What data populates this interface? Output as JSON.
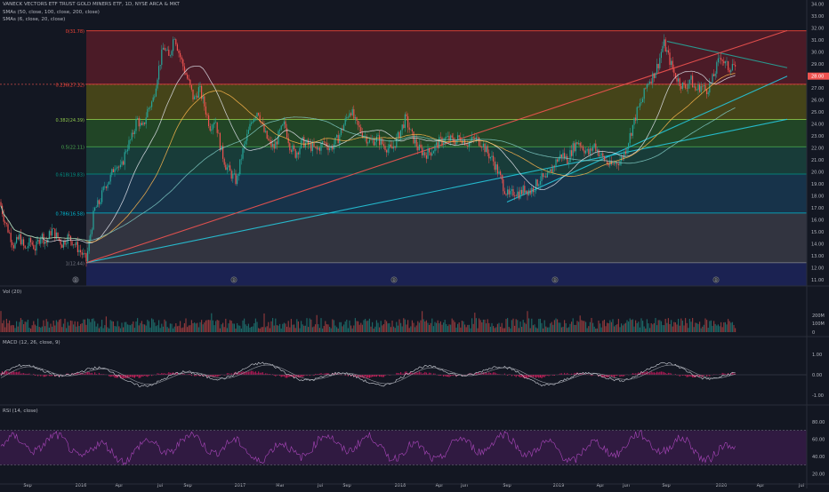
{
  "header": {
    "title": "VANECK VECTORS ETF TRUST GOLD MINERS ETF, 1D, NYSE ARCA & MKT",
    "sma1": "SMAs (50, close, 100, close, 200, close)",
    "sma2": "SMAs (6, close, 20, close)"
  },
  "panes": {
    "volume": "Vol (20)",
    "macd": "MACD (12, 26, close, 9)",
    "rsi": "RSI (14, close)"
  },
  "colors": {
    "background": "#131722",
    "up": "#26a69a",
    "down": "#ef5350",
    "trendline": "#2dd4a8",
    "rsi": "#9c27b0",
    "macd_hist": "#e91e63",
    "price_tag": "#ef5350"
  },
  "chart_data": {
    "type": "line",
    "price_axis": {
      "ticks": [
        "34.00",
        "33.00",
        "32.00",
        "31.00",
        "30.00",
        "29.00",
        "28.00",
        "27.00",
        "26.00",
        "25.00",
        "24.00",
        "23.00",
        "22.00",
        "21.00",
        "20.00",
        "19.00",
        "18.00",
        "17.00",
        "16.00",
        "15.00",
        "14.00",
        "13.00",
        "12.00",
        "11.00"
      ],
      "min": 10.5,
      "max": 34.2,
      "last_price": "28.00"
    },
    "time_axis": [
      "Sep",
      "2016",
      "Apr",
      "Jul",
      "Sep",
      "2017",
      "Mar",
      "Jul",
      "Sep",
      "2018",
      "Apr",
      "Jun",
      "Sep",
      "2019",
      "Apr",
      "Jun",
      "Sep",
      "2020",
      "Apr",
      "Jul"
    ],
    "fib_levels": [
      {
        "label": "0(31.78)",
        "price": 31.78,
        "color": "#f44336"
      },
      {
        "label": "0.236(27.32)",
        "price": 27.32,
        "color": "#f44336"
      },
      {
        "label": "0.382(24.39)",
        "price": 24.39,
        "color": "#8bc34a"
      },
      {
        "label": "0.5(22.11)",
        "price": 22.11,
        "color": "#4caf50"
      },
      {
        "label": "0.618(19.83)",
        "price": 19.83,
        "color": "#009688"
      },
      {
        "label": "0.786(16.58)",
        "price": 16.58,
        "color": "#00bcd4"
      },
      {
        "label": "1(12.44)",
        "price": 12.44,
        "color": "#787b86"
      }
    ],
    "price_series": [
      {
        "t": 0,
        "v": 17.5
      },
      {
        "t": 5,
        "v": 16.0
      },
      {
        "t": 10,
        "v": 15.0
      },
      {
        "t": 16,
        "v": 13.8
      },
      {
        "t": 22,
        "v": 14.6
      },
      {
        "t": 28,
        "v": 13.5
      },
      {
        "t": 34,
        "v": 14.2
      },
      {
        "t": 40,
        "v": 13.6
      },
      {
        "t": 46,
        "v": 14.8
      },
      {
        "t": 52,
        "v": 14.1
      },
      {
        "t": 58,
        "v": 15.2
      },
      {
        "t": 64,
        "v": 14.6
      },
      {
        "t": 70,
        "v": 14.0
      },
      {
        "t": 76,
        "v": 14.6
      },
      {
        "t": 82,
        "v": 14.2
      },
      {
        "t": 88,
        "v": 13.6
      },
      {
        "t": 92,
        "v": 13.2
      },
      {
        "t": 97,
        "v": 12.6
      },
      {
        "t": 101,
        "v": 14.5
      },
      {
        "t": 106,
        "v": 16.8
      },
      {
        "t": 112,
        "v": 17.5
      },
      {
        "t": 118,
        "v": 18.9
      },
      {
        "t": 124,
        "v": 19.5
      },
      {
        "t": 130,
        "v": 20.8
      },
      {
        "t": 136,
        "v": 20.2
      },
      {
        "t": 142,
        "v": 22.0
      },
      {
        "t": 148,
        "v": 22.8
      },
      {
        "t": 154,
        "v": 24.5
      },
      {
        "t": 160,
        "v": 23.5
      },
      {
        "t": 166,
        "v": 25.2
      },
      {
        "t": 172,
        "v": 26.0
      },
      {
        "t": 178,
        "v": 28.5
      },
      {
        "t": 184,
        "v": 30.5
      },
      {
        "t": 190,
        "v": 29.5
      },
      {
        "t": 196,
        "v": 31.5
      },
      {
        "t": 201,
        "v": 30.0
      },
      {
        "t": 206,
        "v": 28.8
      },
      {
        "t": 212,
        "v": 27.5
      },
      {
        "t": 218,
        "v": 26.0
      },
      {
        "t": 224,
        "v": 27.0
      },
      {
        "t": 230,
        "v": 25.5
      },
      {
        "t": 236,
        "v": 23.8
      },
      {
        "t": 242,
        "v": 24.5
      },
      {
        "t": 248,
        "v": 22.0
      },
      {
        "t": 254,
        "v": 20.5
      },
      {
        "t": 260,
        "v": 19.8
      },
      {
        "t": 266,
        "v": 19.2
      },
      {
        "t": 272,
        "v": 21.5
      },
      {
        "t": 278,
        "v": 23.0
      },
      {
        "t": 284,
        "v": 24.5
      },
      {
        "t": 290,
        "v": 25.2
      },
      {
        "t": 296,
        "v": 23.5
      },
      {
        "t": 302,
        "v": 22.5
      },
      {
        "t": 308,
        "v": 22.0
      },
      {
        "t": 314,
        "v": 23.2
      },
      {
        "t": 320,
        "v": 24.0
      },
      {
        "t": 326,
        "v": 22.2
      },
      {
        "t": 332,
        "v": 21.5
      },
      {
        "t": 340,
        "v": 22.5
      },
      {
        "t": 348,
        "v": 22.2
      },
      {
        "t": 356,
        "v": 21.8
      },
      {
        "t": 364,
        "v": 22.5
      },
      {
        "t": 372,
        "v": 22.0
      },
      {
        "t": 380,
        "v": 22.8
      },
      {
        "t": 388,
        "v": 24.2
      },
      {
        "t": 394,
        "v": 25.3
      },
      {
        "t": 400,
        "v": 24.0
      },
      {
        "t": 408,
        "v": 23.2
      },
      {
        "t": 416,
        "v": 22.5
      },
      {
        "t": 424,
        "v": 22.8
      },
      {
        "t": 432,
        "v": 22.2
      },
      {
        "t": 440,
        "v": 21.8
      },
      {
        "t": 448,
        "v": 23.0
      },
      {
        "t": 456,
        "v": 24.5
      },
      {
        "t": 462,
        "v": 23.2
      },
      {
        "t": 470,
        "v": 22.0
      },
      {
        "t": 478,
        "v": 21.5
      },
      {
        "t": 486,
        "v": 21.8
      },
      {
        "t": 494,
        "v": 22.5
      },
      {
        "t": 502,
        "v": 22.8
      },
      {
        "t": 510,
        "v": 22.6
      },
      {
        "t": 518,
        "v": 22.9
      },
      {
        "t": 526,
        "v": 22.4
      },
      {
        "t": 534,
        "v": 22.8
      },
      {
        "t": 542,
        "v": 22.4
      },
      {
        "t": 548,
        "v": 21.6
      },
      {
        "t": 554,
        "v": 21.0
      },
      {
        "t": 560,
        "v": 20.0
      },
      {
        "t": 566,
        "v": 18.8
      },
      {
        "t": 572,
        "v": 17.9
      },
      {
        "t": 578,
        "v": 18.4
      },
      {
        "t": 584,
        "v": 18.2
      },
      {
        "t": 590,
        "v": 18.6
      },
      {
        "t": 596,
        "v": 18.4
      },
      {
        "t": 602,
        "v": 18.9
      },
      {
        "t": 608,
        "v": 19.5
      },
      {
        "t": 614,
        "v": 19.3
      },
      {
        "t": 620,
        "v": 20.2
      },
      {
        "t": 626,
        "v": 21.0
      },
      {
        "t": 632,
        "v": 21.5
      },
      {
        "t": 638,
        "v": 21.0
      },
      {
        "t": 644,
        "v": 22.0
      },
      {
        "t": 650,
        "v": 22.6
      },
      {
        "t": 656,
        "v": 22.0
      },
      {
        "t": 662,
        "v": 21.5
      },
      {
        "t": 668,
        "v": 22.3
      },
      {
        "t": 674,
        "v": 21.5
      },
      {
        "t": 680,
        "v": 21.0
      },
      {
        "t": 686,
        "v": 20.5
      },
      {
        "t": 692,
        "v": 20.8
      },
      {
        "t": 698,
        "v": 21.0
      },
      {
        "t": 704,
        "v": 22.0
      },
      {
        "t": 710,
        "v": 23.5
      },
      {
        "t": 716,
        "v": 25.0
      },
      {
        "t": 722,
        "v": 26.0
      },
      {
        "t": 728,
        "v": 27.5
      },
      {
        "t": 734,
        "v": 28.0
      },
      {
        "t": 740,
        "v": 29.0
      },
      {
        "t": 746,
        "v": 30.8
      },
      {
        "t": 752,
        "v": 29.5
      },
      {
        "t": 758,
        "v": 28.2
      },
      {
        "t": 764,
        "v": 27.5
      },
      {
        "t": 770,
        "v": 27.0
      },
      {
        "t": 776,
        "v": 27.8
      },
      {
        "t": 782,
        "v": 26.8
      },
      {
        "t": 788,
        "v": 27.2
      },
      {
        "t": 794,
        "v": 26.8
      },
      {
        "t": 800,
        "v": 27.5
      },
      {
        "t": 806,
        "v": 28.8
      },
      {
        "t": 810,
        "v": 29.8
      },
      {
        "t": 815,
        "v": 29.0
      },
      {
        "t": 820,
        "v": 28.6
      },
      {
        "t": 824,
        "v": 29.2
      },
      {
        "t": 828,
        "v": 28.0
      }
    ],
    "trendlines": [
      {
        "from": {
          "t": 97,
          "v": 12.44
        },
        "to": {
          "t": 885,
          "v": 24.4
        },
        "color": "#26c6da"
      },
      {
        "from": {
          "t": 570,
          "v": 17.5
        },
        "to": {
          "t": 885,
          "v": 28.0
        },
        "color": "#26c6da"
      },
      {
        "from": {
          "t": 750,
          "v": 30.9
        },
        "to": {
          "t": 885,
          "v": 28.7
        },
        "color": "#26a69a"
      },
      {
        "from": {
          "t": 97,
          "v": 12.44
        },
        "to": {
          "t": 885,
          "v": 31.8
        },
        "color": "#ef5350"
      }
    ],
    "volume_axis": [
      "200M",
      "100M",
      "0"
    ],
    "macd_axis": [
      "1.00",
      "0.00",
      "-1.00"
    ],
    "rsi_axis": [
      "80.00",
      "60.00",
      "40.00",
      "20.00"
    ],
    "rsi_band": [
      70,
      30
    ]
  }
}
